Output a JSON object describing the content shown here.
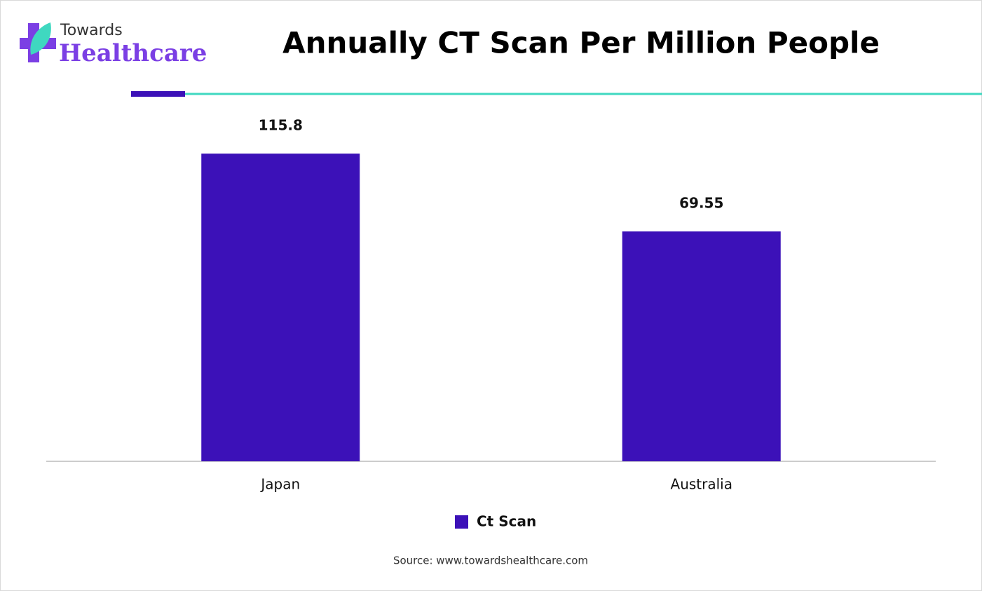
{
  "logo": {
    "line1": "Towards",
    "line2": "Healthcare"
  },
  "chart_data": {
    "type": "bar",
    "title": "Annually CT Scan Per Million People",
    "categories": [
      "Japan",
      "Australia"
    ],
    "series": [
      {
        "name": "Ct Scan",
        "color": "#3c11b8",
        "values": [
          115.8,
          69.55
        ]
      }
    ],
    "ylim": [
      -67,
      140
    ]
  },
  "source": "Source: www.towardshealthcare.com"
}
